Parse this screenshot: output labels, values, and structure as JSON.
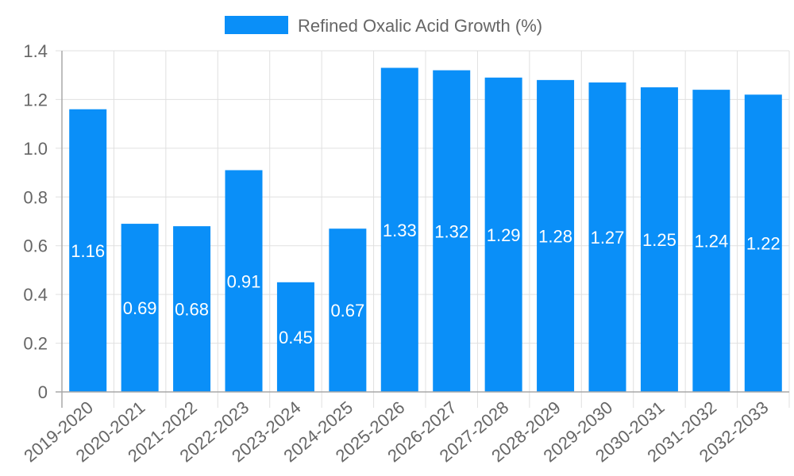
{
  "chart_data": {
    "type": "bar",
    "title": "",
    "xlabel": "",
    "ylabel": "",
    "legend": {
      "position": "top",
      "entries": [
        "Refined Oxalic Acid Growth (%)"
      ]
    },
    "grid": true,
    "ylim": [
      0,
      1.4
    ],
    "yticks": [
      "0",
      "0.2",
      "0.4",
      "0.6",
      "0.8",
      "1.0",
      "1.2",
      "1.4"
    ],
    "categories": [
      "2019-2020",
      "2020-2021",
      "2021-2022",
      "2022-2023",
      "2023-2024",
      "2024-2025",
      "2025-2026",
      "2026-2027",
      "2027-2028",
      "2028-2029",
      "2029-2030",
      "2030-2031",
      "2031-2032",
      "2032-2033"
    ],
    "series": [
      {
        "name": "Refined Oxalic Acid Growth (%)",
        "color": "#0a8ff8",
        "values": [
          1.16,
          0.69,
          0.68,
          0.91,
          0.45,
          0.67,
          1.33,
          1.32,
          1.29,
          1.28,
          1.27,
          1.25,
          1.24,
          1.22
        ],
        "labels": [
          "1.16",
          "0.69",
          "0.68",
          "0.91",
          "0.45",
          "0.67",
          "1.33",
          "1.32",
          "1.29",
          "1.28",
          "1.27",
          "1.25",
          "1.24",
          "1.22"
        ]
      }
    ]
  },
  "colors": {
    "bar": "#0a8ff8",
    "grid": "#e0e0e0",
    "axis": "#a8a8a8",
    "text": "#666666",
    "label": "#ffffff"
  }
}
